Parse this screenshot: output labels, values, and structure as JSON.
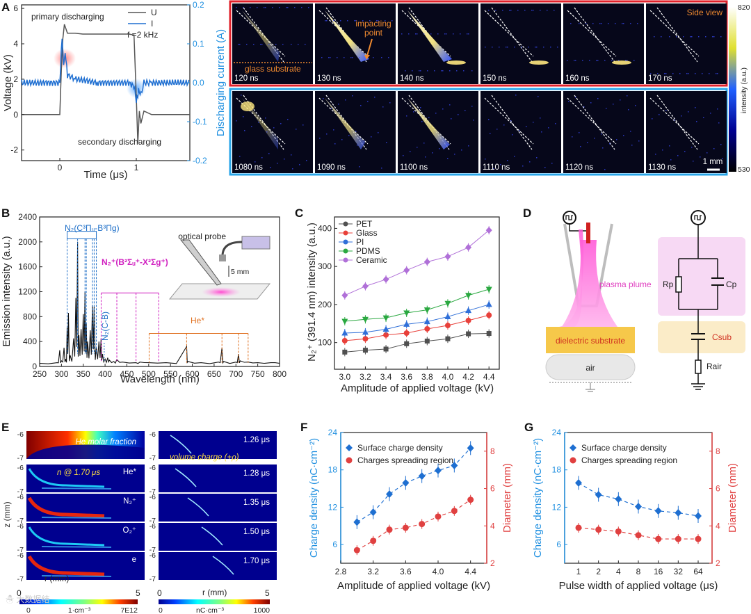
{
  "panels": {
    "A": "A",
    "B": "B",
    "C": "C",
    "D": "D",
    "E": "E",
    "F": "F",
    "G": "G"
  },
  "panelA": {
    "legend": [
      {
        "name": "U",
        "color": "#555555"
      },
      {
        "name": "I",
        "color": "#1f6fd1"
      }
    ],
    "freq": "f =2 kHz",
    "primary": "primary discharging",
    "secondary": "secondary discharging",
    "xlabel": "Time (μs)",
    "ylabel_left": "Voltage (kV)",
    "ylabel_right": "Discharging current (A)",
    "xticks": [
      "0",
      "1"
    ],
    "yticks_left": [
      "-2",
      "0",
      "2",
      "4",
      "6"
    ],
    "yticks_right": [
      "-0.2",
      "-0.1",
      "0.0",
      "0.1",
      "0.2"
    ]
  },
  "images": {
    "side_view": "Side view",
    "impacting": "impacting point",
    "glass": "glass substrate",
    "scale": "1 mm",
    "row1": [
      "120 ns",
      "130 ns",
      "140 ns",
      "150 ns",
      "160 ns",
      "170 ns"
    ],
    "row2": [
      "1080 ns",
      "1090 ns",
      "1100 ns",
      "1110 ns",
      "1120 ns",
      "1130 ns"
    ],
    "cbar_max": "820",
    "cbar_min": "530",
    "cbar_label": "intensity (a.u.)"
  },
  "panelB": {
    "xlabel": "Wavelength (nm)",
    "ylabel": "Emission intensity (a.u.)",
    "xticks": [
      "250",
      "300",
      "350",
      "400",
      "450",
      "500",
      "550",
      "600",
      "650",
      "700",
      "750",
      "800"
    ],
    "yticks": [
      "0",
      "400",
      "800",
      "1200",
      "1600",
      "2000",
      "2400"
    ],
    "n2": "N₂(C³Πᵤ-B³Πg)",
    "n2plus": "N₂⁺(B²Σᵤ⁺-X²Σg⁺)",
    "n2cb": "N₂(C-B)",
    "he": "He*",
    "probe": "optical probe",
    "dist": "5 mm"
  },
  "chart_data": [
    {
      "type": "line",
      "title": "",
      "xlabel": "Time (μs)",
      "ylabel": "Voltage (kV)",
      "ylabel2": "Discharging current (A)",
      "xlim": [
        -0.5,
        1.7
      ],
      "ylim": [
        -2.6,
        6.2
      ],
      "ylim2": [
        -0.2,
        0.2
      ],
      "series": [
        {
          "name": "U",
          "x": [
            -0.5,
            0.0,
            0.02,
            0.04,
            0.06,
            0.1,
            0.2,
            0.3,
            0.5,
            0.9,
            0.97,
            1.0,
            1.02,
            1.04,
            1.06,
            1.1,
            1.2,
            1.4,
            1.7
          ],
          "y": [
            0,
            0,
            2.5,
            4.3,
            5.1,
            4.6,
            4.6,
            4.55,
            4.55,
            4.55,
            4.5,
            1.0,
            -1.6,
            0.2,
            -0.5,
            0.2,
            0,
            0,
            0
          ]
        },
        {
          "name": "I",
          "x": [
            -0.5,
            0.0,
            0.03,
            0.05,
            0.07,
            0.1,
            0.2,
            0.5,
            0.9,
            0.98,
            1.0,
            1.03,
            1.06,
            1.1,
            1.2,
            1.7
          ],
          "y": [
            0.0,
            0.0,
            0.12,
            0.04,
            0.08,
            0.02,
            0.01,
            0.0,
            0.0,
            -0.01,
            -0.05,
            -0.02,
            -0.03,
            0.0,
            0.0,
            0.0
          ]
        }
      ]
    },
    {
      "type": "line",
      "title": "",
      "xlabel": "Wavelength (nm)",
      "ylabel": "Emission intensity (a.u.)",
      "xlim": [
        250,
        800
      ],
      "ylim": [
        0,
        2400
      ],
      "series": [
        {
          "name": "spectrum",
          "x": [
            250,
            290,
            296,
            300,
            306,
            310,
            313,
            316,
            320,
            328,
            333,
            337,
            340,
            345,
            350,
            354,
            357,
            360,
            366,
            371,
            375,
            380,
            386,
            391,
            394,
            400,
            406,
            410,
            420,
            427,
            440,
            471,
            480,
            500,
            540,
            587,
            590,
            620,
            660,
            668,
            672,
            700,
            706,
            710,
            728,
            750,
            780,
            800
          ],
          "y": [
            50,
            60,
            260,
            90,
            300,
            120,
            620,
            860,
            180,
            450,
            1100,
            2000,
            500,
            600,
            840,
            1200,
            700,
            400,
            580,
            980,
            960,
            300,
            400,
            450,
            200,
            120,
            140,
            100,
            80,
            110,
            70,
            60,
            70,
            60,
            60,
            320,
            80,
            60,
            70,
            300,
            80,
            70,
            200,
            90,
            70,
            60,
            60,
            50
          ]
        }
      ]
    },
    {
      "type": "line",
      "title": "",
      "xlabel": "Amplitude of applied voltage (kV)",
      "ylabel": "N₂⁺ (391.4 nm) intensity (a.u.)",
      "xlim": [
        2.9,
        4.5
      ],
      "ylim": [
        30,
        430
      ],
      "categories": [
        3.0,
        3.2,
        3.4,
        3.6,
        3.8,
        4.0,
        4.2,
        4.4
      ],
      "series": [
        {
          "name": "PET",
          "values": [
            75,
            80,
            83,
            97,
            104,
            110,
            123,
            124
          ]
        },
        {
          "name": "Glass",
          "values": [
            105,
            110,
            120,
            125,
            136,
            145,
            158,
            172
          ]
        },
        {
          "name": "PI",
          "values": [
            125,
            127,
            135,
            148,
            155,
            168,
            184,
            200
          ]
        },
        {
          "name": "PDMS",
          "values": [
            156,
            161,
            165,
            178,
            186,
            203,
            224,
            240
          ]
        },
        {
          "name": "Ceramic",
          "values": [
            224,
            248,
            266,
            290,
            312,
            326,
            350,
            395
          ]
        }
      ]
    },
    {
      "type": "scatter",
      "title": "",
      "xlabel": "Amplitude of applied voltage (kV)",
      "ylabel": "Charge density (nC·cm⁻²)",
      "ylabel2": "Diameter (mm)",
      "xlim": [
        2.8,
        4.6
      ],
      "ylim": [
        3,
        24
      ],
      "ylim2": [
        2,
        9
      ],
      "series": [
        {
          "name": "Surface charge density",
          "x": [
            3.0,
            3.2,
            3.4,
            3.6,
            3.8,
            4.0,
            4.2,
            4.4
          ],
          "values": [
            9.6,
            11.2,
            14.1,
            15.9,
            17.0,
            17.9,
            18.7,
            21.5
          ]
        },
        {
          "name": "Charges spreading region",
          "x": [
            3.0,
            3.2,
            3.4,
            3.6,
            3.8,
            4.0,
            4.2,
            4.4
          ],
          "values": [
            2.7,
            3.2,
            3.8,
            3.9,
            4.1,
            4.5,
            4.8,
            5.4
          ]
        }
      ]
    },
    {
      "type": "scatter",
      "title": "",
      "xlabel": "Pulse width of applied voltage (μs)",
      "ylabel": "Charge density (nC·cm⁻²)",
      "ylabel2": "Diameter (mm)",
      "ylim": [
        3,
        24
      ],
      "ylim2": [
        2,
        9
      ],
      "categories": [
        "1",
        "2",
        "4",
        "8",
        "16",
        "32",
        "64"
      ],
      "series": [
        {
          "name": "Surface charge density",
          "values": [
            15.9,
            14.0,
            13.3,
            12.1,
            11.4,
            11.1,
            10.6
          ]
        },
        {
          "name": "Charges spreading region",
          "values": [
            3.9,
            3.8,
            3.7,
            3.5,
            3.3,
            3.3,
            3.3
          ]
        }
      ]
    }
  ],
  "panelC": {
    "xlabel": "Amplitude of applied voltage (kV)",
    "ylabel": "N₂⁺ (391.4 nm) intensity (a.u.)",
    "xticks": [
      "3.0",
      "3.2",
      "3.4",
      "3.6",
      "3.8",
      "4.0",
      "4.2",
      "4.4"
    ],
    "yticks": [
      "100",
      "200",
      "300",
      "400"
    ],
    "colors": [
      "#505050",
      "#e8403a",
      "#2f6fd8",
      "#2aa840",
      "#b070d8"
    ]
  },
  "panelD": {
    "plasma": "plasma plume",
    "substrate": "dielectric substrate",
    "air": "air",
    "rp": "Rp",
    "cp": "Cp",
    "csub": "Csub",
    "rair": "Rair"
  },
  "panelE": {
    "he": "He molar fraction",
    "n": "n @ 1.70 μs",
    "vol": "volume charge (+ρ)",
    "species": [
      "He*",
      "N₂⁺",
      "O₂⁺",
      "e"
    ],
    "times": [
      "1.26 μs",
      "1.28 μs",
      "1.35 μs",
      "1.50 μs",
      "1.70 μs"
    ],
    "zlabel": "z (mm)",
    "rlabel": "r (mm)",
    "zticks": [
      "-6",
      "-7"
    ],
    "r0": "0",
    "r5": "5",
    "cb1_min": "0",
    "cb1_mid": "1·cm⁻³",
    "cb1_max": "7E12",
    "cb2_min": "0",
    "cb2_mid": "nC·cm⁻³",
    "cb2_max": "1000"
  },
  "panelF": {
    "xlabel": "Amplitude of applied voltage (kV)",
    "ylabel": "Charge density (nC·cm⁻²)",
    "ylabel2": "Diameter (mm)",
    "xticks": [
      "2.8",
      "3.2",
      "3.6",
      "4.0",
      "4.4"
    ],
    "yticks": [
      "6",
      "12",
      "18",
      "24"
    ],
    "yticks2": [
      "2",
      "4",
      "6",
      "8"
    ],
    "leg1": "Surface charge density",
    "leg2": "Charges spreading region"
  },
  "panelG": {
    "xlabel": "Pulse width of applied voltage (μs)",
    "ylabel": "Charge density (nC·cm⁻²)",
    "ylabel2": "Diameter (mm)",
    "xticks": [
      "1",
      "2",
      "4",
      "8",
      "16",
      "32",
      "64"
    ],
    "yticks": [
      "6",
      "12",
      "18",
      "24"
    ],
    "yticks2": [
      "2",
      "4",
      "6",
      "8"
    ],
    "leg1": "Surface charge density",
    "leg2": "Charges spreading region"
  },
  "watermark": "☃ 大数据结"
}
